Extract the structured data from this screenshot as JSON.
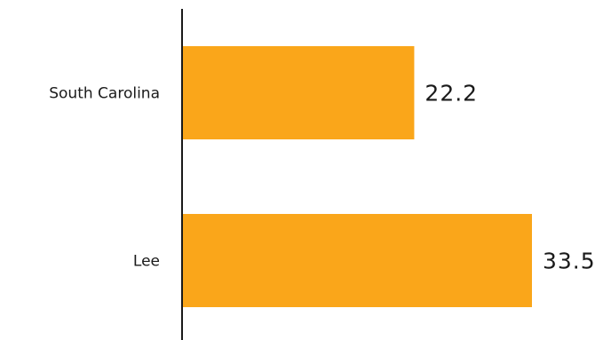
{
  "chart_data": {
    "type": "bar",
    "orientation": "horizontal",
    "categories": [
      "South Carolina",
      "Lee"
    ],
    "values": [
      22.2,
      33.5
    ],
    "value_labels": [
      "22.2",
      "33.5"
    ],
    "title": "",
    "xlabel": "",
    "ylabel": "",
    "xlim": [
      0,
      33.5
    ],
    "grid": false,
    "legend": "none",
    "colors": {
      "bar": "#FAA61A",
      "axis": "#1a1a1a",
      "text": "#1a1a1a"
    }
  }
}
